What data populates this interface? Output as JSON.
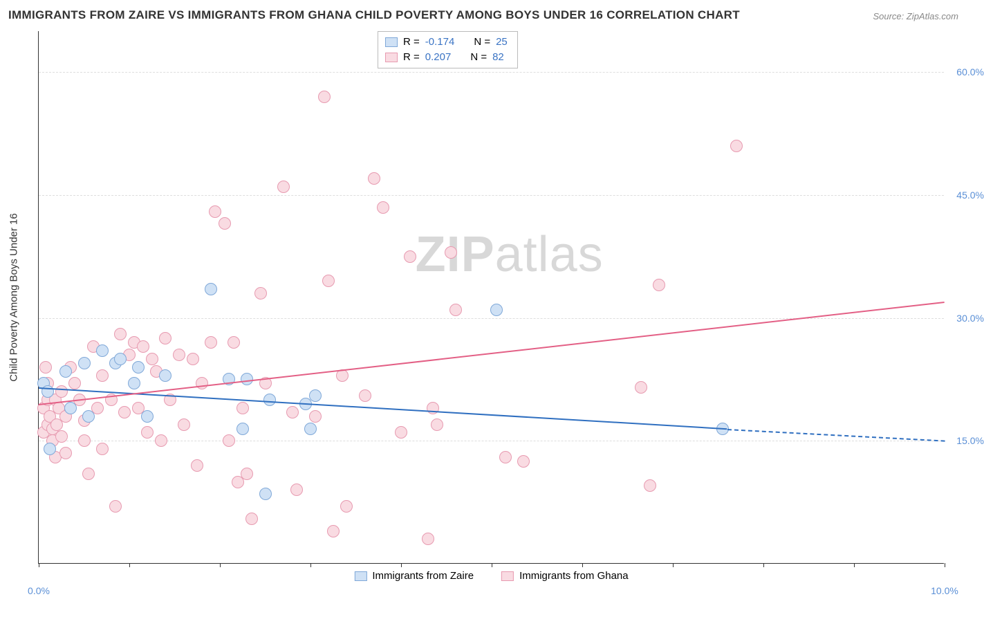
{
  "title": "IMMIGRANTS FROM ZAIRE VS IMMIGRANTS FROM GHANA CHILD POVERTY AMONG BOYS UNDER 16 CORRELATION CHART",
  "source_prefix": "Source: ",
  "source_name": "ZipAtlas.com",
  "watermark": {
    "bold": "ZIP",
    "rest": "atlas"
  },
  "chart": {
    "type": "scatter",
    "ylabel": "Child Poverty Among Boys Under 16",
    "xlim": [
      0,
      10
    ],
    "ylim": [
      0,
      65
    ],
    "y_ticks": [
      15,
      30,
      45,
      60
    ],
    "y_tick_labels": [
      "15.0%",
      "30.0%",
      "45.0%",
      "60.0%"
    ],
    "x_ticks": [
      0,
      1,
      2,
      3,
      4,
      5,
      6,
      7,
      8,
      9,
      10
    ],
    "x_tick_labels": {
      "0": "0.0%",
      "10": "10.0%"
    },
    "background_color": "#ffffff",
    "grid_color": "#dddddd",
    "tick_label_color": "#5a8fd6",
    "marker_radius": 9,
    "series": [
      {
        "name": "Immigrants from Zaire",
        "color_fill": "#cfe1f5",
        "color_stroke": "#7fa8d8",
        "trend_color": "#2f6fc0",
        "R": "-0.174",
        "N": "25",
        "trend": {
          "x1": 0,
          "y1": 21.5,
          "x2": 7.6,
          "y2": 16.5,
          "ext_x2": 10,
          "ext_y2": 15.1
        },
        "points": [
          [
            0.05,
            22
          ],
          [
            0.1,
            21
          ],
          [
            0.12,
            14
          ],
          [
            0.3,
            23.5
          ],
          [
            0.35,
            19
          ],
          [
            0.5,
            24.5
          ],
          [
            0.55,
            18
          ],
          [
            0.7,
            26
          ],
          [
            0.85,
            24.5
          ],
          [
            0.9,
            25
          ],
          [
            1.05,
            22
          ],
          [
            1.1,
            24
          ],
          [
            1.2,
            18
          ],
          [
            1.4,
            23
          ],
          [
            1.9,
            33.5
          ],
          [
            2.1,
            22.5
          ],
          [
            2.25,
            16.5
          ],
          [
            2.3,
            22.5
          ],
          [
            2.5,
            8.5
          ],
          [
            2.55,
            20
          ],
          [
            2.95,
            19.5
          ],
          [
            3.0,
            16.5
          ],
          [
            3.05,
            20.5
          ],
          [
            5.05,
            31
          ],
          [
            7.55,
            16.5
          ]
        ]
      },
      {
        "name": "Immigrants from Ghana",
        "color_fill": "#f9dbe2",
        "color_stroke": "#e79ab0",
        "trend_color": "#e35f85",
        "R": "0.207",
        "N": "82",
        "trend": {
          "x1": 0,
          "y1": 19.5,
          "x2": 10,
          "y2": 32.0
        },
        "points": [
          [
            0.05,
            16
          ],
          [
            0.05,
            19
          ],
          [
            0.08,
            24
          ],
          [
            0.1,
            17
          ],
          [
            0.1,
            20
          ],
          [
            0.1,
            22
          ],
          [
            0.12,
            18
          ],
          [
            0.15,
            15
          ],
          [
            0.15,
            16.5
          ],
          [
            0.18,
            20
          ],
          [
            0.18,
            13
          ],
          [
            0.2,
            17
          ],
          [
            0.22,
            19
          ],
          [
            0.25,
            15.5
          ],
          [
            0.25,
            21
          ],
          [
            0.3,
            18
          ],
          [
            0.3,
            13.5
          ],
          [
            0.35,
            24
          ],
          [
            0.4,
            22
          ],
          [
            0.45,
            20
          ],
          [
            0.5,
            15
          ],
          [
            0.5,
            17.5
          ],
          [
            0.55,
            11
          ],
          [
            0.6,
            26.5
          ],
          [
            0.65,
            19
          ],
          [
            0.7,
            23
          ],
          [
            0.7,
            14
          ],
          [
            0.8,
            20
          ],
          [
            0.85,
            7
          ],
          [
            0.9,
            28
          ],
          [
            0.95,
            18.5
          ],
          [
            1.0,
            25.5
          ],
          [
            1.05,
            27
          ],
          [
            1.1,
            19
          ],
          [
            1.15,
            26.5
          ],
          [
            1.2,
            16
          ],
          [
            1.25,
            25
          ],
          [
            1.3,
            23.5
          ],
          [
            1.35,
            15
          ],
          [
            1.4,
            27.5
          ],
          [
            1.45,
            20
          ],
          [
            1.55,
            25.5
          ],
          [
            1.6,
            17
          ],
          [
            1.7,
            25
          ],
          [
            1.75,
            12
          ],
          [
            1.8,
            22
          ],
          [
            1.9,
            27
          ],
          [
            1.95,
            43
          ],
          [
            2.05,
            41.5
          ],
          [
            2.1,
            15
          ],
          [
            2.15,
            27
          ],
          [
            2.2,
            10
          ],
          [
            2.25,
            19
          ],
          [
            2.3,
            11
          ],
          [
            2.35,
            5.5
          ],
          [
            2.45,
            33
          ],
          [
            2.5,
            22
          ],
          [
            2.7,
            46
          ],
          [
            2.8,
            18.5
          ],
          [
            2.85,
            9
          ],
          [
            3.05,
            18
          ],
          [
            3.15,
            57
          ],
          [
            3.2,
            34.5
          ],
          [
            3.25,
            4
          ],
          [
            3.35,
            23
          ],
          [
            3.4,
            7
          ],
          [
            3.6,
            20.5
          ],
          [
            3.7,
            47
          ],
          [
            3.8,
            43.5
          ],
          [
            4.0,
            16
          ],
          [
            4.1,
            37.5
          ],
          [
            4.3,
            3
          ],
          [
            4.35,
            19
          ],
          [
            4.4,
            17
          ],
          [
            4.55,
            38
          ],
          [
            4.6,
            31
          ],
          [
            5.15,
            13
          ],
          [
            5.35,
            12.5
          ],
          [
            6.65,
            21.5
          ],
          [
            6.75,
            9.5
          ],
          [
            6.85,
            34
          ],
          [
            7.7,
            51
          ]
        ]
      }
    ],
    "legend_top": {
      "rows": [
        {
          "series": 0,
          "R_label": "R = ",
          "N_label": "N = "
        },
        {
          "series": 1,
          "R_label": "R = ",
          "N_label": "N = "
        }
      ]
    }
  }
}
